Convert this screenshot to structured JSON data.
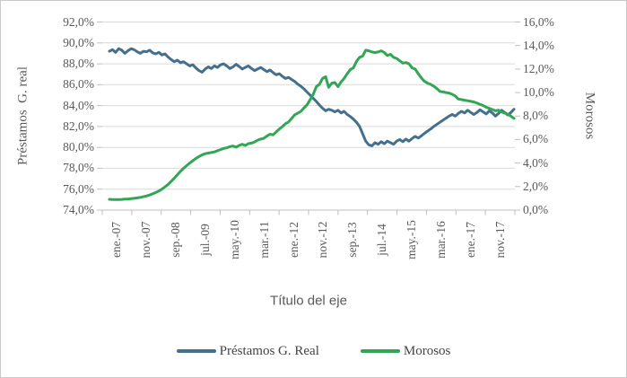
{
  "chart_data": {
    "type": "line",
    "x_axis_title": "Título del eje",
    "y_axis_left": {
      "title": "Préstamos  G. real",
      "min": 74,
      "max": 92,
      "step": 2,
      "tick_labels": [
        "92,0%",
        "90,0%",
        "88,0%",
        "86,0%",
        "84,0%",
        "82,0%",
        "80,0%",
        "78,0%",
        "76,0%",
        "74,0%"
      ]
    },
    "y_axis_right": {
      "title": "Morosos",
      "min": 0,
      "max": 16,
      "step": 2,
      "tick_labels": [
        "16,0%",
        "14,0%",
        "12,0%",
        "10,0%",
        "8,0%",
        "6,0%",
        "4,0%",
        "2,0%",
        "0,0%"
      ]
    },
    "x_tick_labels": [
      "ene.-07",
      "nov.-07",
      "sep.-08",
      "jul.-09",
      "may.-10",
      "mar.-11",
      "ene.-12",
      "nov.-12",
      "sep.-13",
      "jul.-14",
      "may.-15",
      "mar.-16",
      "ene.-17",
      "nov.-17"
    ],
    "x_months_per_point": 1,
    "x_label_every_n_points": 10,
    "grid": true,
    "legend_position": "bottom",
    "colors": {
      "grid": "#d9d9d9",
      "axis": "#bfbfbf",
      "text": "#595959"
    },
    "series": [
      {
        "name": "Préstamos G. Real",
        "axis": "left",
        "color": "#44708e",
        "values": [
          89.2,
          89.35,
          89.1,
          89.45,
          89.3,
          89.0,
          89.25,
          89.45,
          89.35,
          89.15,
          89.0,
          89.2,
          89.15,
          89.3,
          89.05,
          88.95,
          89.1,
          88.85,
          88.95,
          88.65,
          88.4,
          88.2,
          88.35,
          88.1,
          88.2,
          88.0,
          87.8,
          87.9,
          87.6,
          87.35,
          87.2,
          87.5,
          87.7,
          87.55,
          87.8,
          87.65,
          87.9,
          88.0,
          87.8,
          87.55,
          87.7,
          87.95,
          87.75,
          87.5,
          87.65,
          87.8,
          87.55,
          87.35,
          87.5,
          87.65,
          87.45,
          87.25,
          87.4,
          87.15,
          86.95,
          87.05,
          86.8,
          86.6,
          86.7,
          86.5,
          86.3,
          86.05,
          85.85,
          85.6,
          85.3,
          85.0,
          84.7,
          84.4,
          84.05,
          83.75,
          83.5,
          83.65,
          83.55,
          83.4,
          83.55,
          83.3,
          83.45,
          83.15,
          82.95,
          82.7,
          82.4,
          82.0,
          81.3,
          80.6,
          80.25,
          80.15,
          80.45,
          80.3,
          80.55,
          80.35,
          80.6,
          80.45,
          80.3,
          80.6,
          80.75,
          80.55,
          80.8,
          80.6,
          80.85,
          81.05,
          80.9,
          81.1,
          81.35,
          81.55,
          81.75,
          82.0,
          82.2,
          82.4,
          82.6,
          82.8,
          83.0,
          83.15,
          83.0,
          83.25,
          83.45,
          83.3,
          83.55,
          83.35,
          83.15,
          83.35,
          83.6,
          83.4,
          83.2,
          83.5,
          83.3,
          83.0,
          83.25,
          83.55,
          83.35,
          83.1,
          83.35,
          83.65
        ]
      },
      {
        "name": "Morosos",
        "axis": "right",
        "color": "#32a654",
        "values": [
          0.92,
          0.9,
          0.89,
          0.9,
          0.91,
          0.93,
          0.95,
          0.97,
          1.0,
          1.04,
          1.08,
          1.14,
          1.2,
          1.28,
          1.38,
          1.5,
          1.62,
          1.78,
          1.98,
          2.18,
          2.45,
          2.72,
          3.0,
          3.3,
          3.55,
          3.78,
          4.0,
          4.2,
          4.4,
          4.55,
          4.7,
          4.8,
          4.85,
          4.9,
          4.95,
          5.05,
          5.15,
          5.25,
          5.3,
          5.4,
          5.45,
          5.35,
          5.5,
          5.6,
          5.5,
          5.65,
          5.7,
          5.8,
          5.95,
          6.05,
          6.1,
          6.3,
          6.45,
          6.4,
          6.65,
          6.9,
          7.1,
          7.35,
          7.5,
          7.8,
          8.1,
          8.25,
          8.4,
          8.7,
          8.95,
          9.4,
          9.85,
          10.5,
          10.7,
          11.2,
          11.35,
          10.45,
          10.8,
          10.85,
          10.5,
          10.9,
          11.2,
          11.6,
          11.95,
          12.1,
          12.65,
          13.0,
          13.1,
          13.6,
          13.55,
          13.45,
          13.4,
          13.45,
          13.55,
          13.4,
          13.15,
          13.25,
          13.0,
          12.9,
          12.7,
          12.5,
          12.55,
          12.45,
          12.1,
          12.0,
          11.6,
          11.25,
          10.95,
          10.8,
          10.7,
          10.55,
          10.35,
          10.1,
          10.05,
          10.0,
          9.95,
          9.85,
          9.7,
          9.45,
          9.4,
          9.35,
          9.3,
          9.25,
          9.2,
          9.1,
          9.0,
          8.9,
          8.75,
          8.65,
          8.55,
          8.45,
          8.5,
          8.35,
          8.25,
          8.15,
          8.0,
          7.8
        ]
      }
    ]
  }
}
